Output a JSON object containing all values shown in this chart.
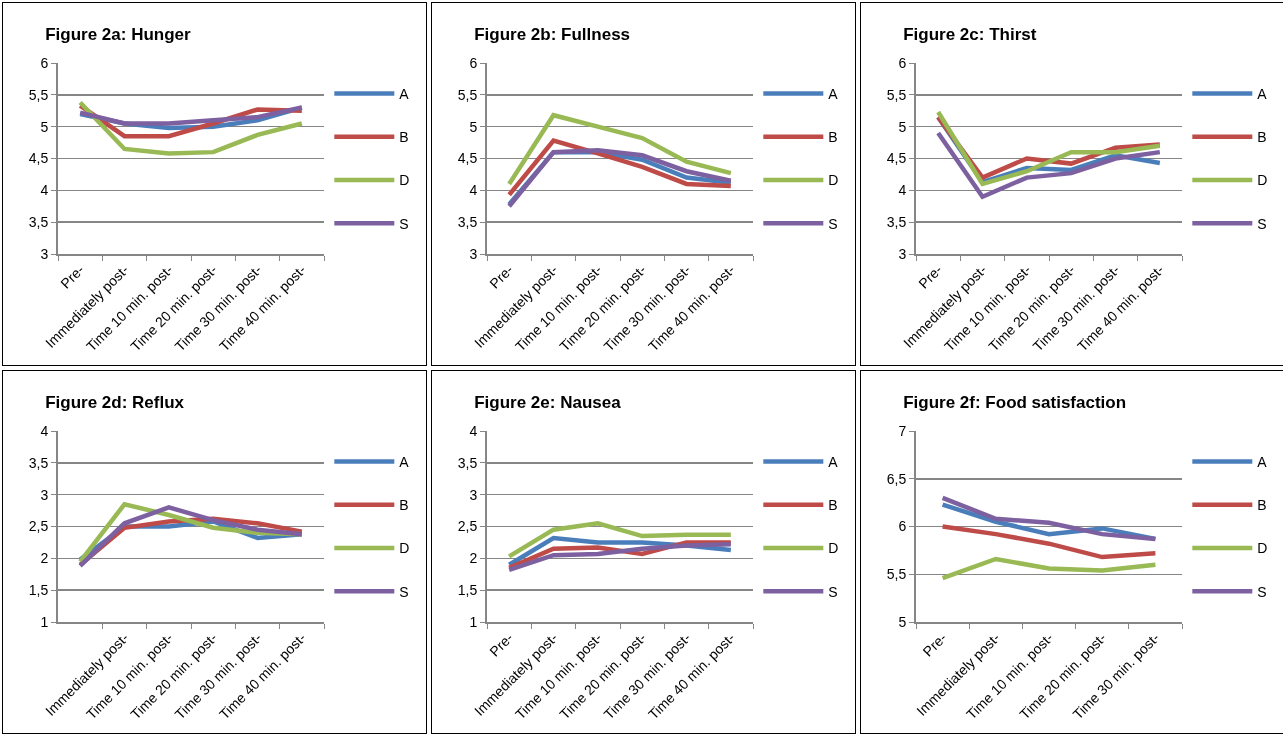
{
  "chart_data": [
    {
      "type": "line",
      "title": "Figure 2a: Hunger",
      "categories": [
        "Pre-",
        "Immediately post-",
        "Time 10 min. post-",
        "Time 20 min. post-",
        "Time 30 min. post-",
        "Time 40 min. post-"
      ],
      "ylim": [
        3,
        6
      ],
      "yticks": [
        3,
        {
          "value": 3.5,
          "label": "3,5"
        },
        4,
        {
          "value": 4.5,
          "label": "4,5"
        },
        5,
        {
          "value": 5.5,
          "label": "5,5"
        },
        6
      ],
      "grid": "y",
      "legend": "right",
      "series": [
        {
          "name": "A",
          "color": "#4a7ebb",
          "values": [
            5.2,
            5.05,
            4.98,
            5.0,
            5.1,
            5.3
          ]
        },
        {
          "name": "B",
          "color": "#be4b48",
          "values": [
            5.33,
            4.85,
            4.85,
            5.05,
            5.27,
            5.25
          ]
        },
        {
          "name": "D",
          "color": "#98b954",
          "values": [
            5.38,
            4.65,
            4.58,
            4.6,
            4.87,
            5.05
          ]
        },
        {
          "name": "S",
          "color": "#7d60a0",
          "values": [
            5.22,
            5.05,
            5.05,
            5.1,
            5.15,
            5.3
          ]
        }
      ]
    },
    {
      "type": "line",
      "title": "Figure 2b: Fullness",
      "categories": [
        "Pre-",
        "Immediately post-",
        "Time 10 min. post-",
        "Time 20 min. post-",
        "Time 30 min. post-",
        "Time 40 min. post-"
      ],
      "ylim": [
        3,
        6
      ],
      "yticks": [
        3,
        {
          "value": 3.5,
          "label": "3,5"
        },
        4,
        {
          "value": 4.5,
          "label": "4,5"
        },
        5,
        {
          "value": 5.5,
          "label": "5,5"
        },
        6
      ],
      "grid": "y",
      "legend": "right",
      "series": [
        {
          "name": "A",
          "color": "#4a7ebb",
          "values": [
            3.78,
            4.6,
            4.6,
            4.48,
            4.2,
            4.12
          ]
        },
        {
          "name": "B",
          "color": "#be4b48",
          "values": [
            3.93,
            4.78,
            4.58,
            4.37,
            4.1,
            4.07
          ]
        },
        {
          "name": "D",
          "color": "#98b954",
          "values": [
            4.1,
            5.18,
            5.0,
            4.82,
            4.45,
            4.27
          ]
        },
        {
          "name": "S",
          "color": "#7d60a0",
          "values": [
            3.75,
            4.6,
            4.63,
            4.55,
            4.3,
            4.15
          ]
        }
      ]
    },
    {
      "type": "line",
      "title": "Figure 2c: Thirst",
      "categories": [
        "Pre-",
        "Immediately post-",
        "Time 10 min. post-",
        "Time 20 min. post-",
        "Time 30 min. post-",
        "Time 40 min. post-"
      ],
      "ylim": [
        3,
        6
      ],
      "yticks": [
        3,
        {
          "value": 3.5,
          "label": "3,5"
        },
        4,
        {
          "value": 4.5,
          "label": "4,5"
        },
        5,
        {
          "value": 5.5,
          "label": "5,5"
        },
        6
      ],
      "grid": "y",
      "legend": "right",
      "series": [
        {
          "name": "A",
          "color": "#4a7ebb",
          "values": [
            5.15,
            4.13,
            4.35,
            4.32,
            4.55,
            4.43
          ]
        },
        {
          "name": "B",
          "color": "#be4b48",
          "values": [
            5.15,
            4.2,
            4.5,
            4.42,
            4.67,
            4.72
          ]
        },
        {
          "name": "D",
          "color": "#98b954",
          "values": [
            5.23,
            4.1,
            4.3,
            4.6,
            4.6,
            4.7
          ]
        },
        {
          "name": "S",
          "color": "#7d60a0",
          "values": [
            4.9,
            3.9,
            4.2,
            4.27,
            4.5,
            4.6
          ]
        }
      ]
    },
    {
      "type": "line",
      "title": "Figure 2d: Reflux",
      "categories": [
        null,
        "Immediately post-",
        "Time 10 min. post-",
        "Time 20 min. post-",
        "Time 30 min. post-",
        "Time 40 min. post-"
      ],
      "ylim": [
        1,
        4
      ],
      "yticks": [
        1,
        {
          "value": 1.5,
          "label": "1,5"
        },
        2,
        {
          "value": 2.5,
          "label": "2,5"
        },
        3,
        {
          "value": 3.5,
          "label": "3,5"
        },
        4
      ],
      "grid": "y",
      "legend": "right",
      "series": [
        {
          "name": "A",
          "color": "#4a7ebb",
          "values": [
            1.98,
            2.5,
            2.5,
            2.58,
            2.32,
            2.38
          ]
        },
        {
          "name": "B",
          "color": "#be4b48",
          "values": [
            1.9,
            2.48,
            2.58,
            2.62,
            2.55,
            2.42
          ]
        },
        {
          "name": "D",
          "color": "#98b954",
          "values": [
            1.95,
            2.85,
            2.68,
            2.48,
            2.4,
            2.38
          ]
        },
        {
          "name": "S",
          "color": "#7d60a0",
          "values": [
            1.88,
            2.55,
            2.8,
            2.6,
            2.45,
            2.38
          ]
        }
      ]
    },
    {
      "type": "line",
      "title": "Figure 2e: Nausea",
      "categories": [
        "Pre-",
        "Immediately post-",
        "Time 10 min. post-",
        "Time 20 min. post-",
        "Time 30 min. post-",
        "Time 40 min. post-"
      ],
      "ylim": [
        1,
        4
      ],
      "yticks": [
        1,
        {
          "value": 1.5,
          "label": "1,5"
        },
        2,
        {
          "value": 2.5,
          "label": "2,5"
        },
        3,
        {
          "value": 3.5,
          "label": "3,5"
        },
        4
      ],
      "grid": "y",
      "legend": "right",
      "series": [
        {
          "name": "A",
          "color": "#4a7ebb",
          "values": [
            1.9,
            2.32,
            2.25,
            2.25,
            2.2,
            2.13
          ]
        },
        {
          "name": "B",
          "color": "#be4b48",
          "values": [
            1.85,
            2.15,
            2.17,
            2.07,
            2.25,
            2.25
          ]
        },
        {
          "name": "D",
          "color": "#98b954",
          "values": [
            2.03,
            2.45,
            2.55,
            2.35,
            2.37,
            2.37
          ]
        },
        {
          "name": "S",
          "color": "#7d60a0",
          "values": [
            1.82,
            2.05,
            2.07,
            2.15,
            2.2,
            2.22
          ]
        }
      ]
    },
    {
      "type": "line",
      "title": "Figure 2f: Food satisfaction",
      "categories": [
        "Pre-",
        "Immediately post-",
        "Time 10 min. post-",
        "Time 20 min. post-",
        "Time 30 min. post-"
      ],
      "ylim": [
        5,
        7
      ],
      "yticks": [
        5,
        {
          "value": 5.5,
          "label": "5,5"
        },
        6,
        {
          "value": 6.5,
          "label": "6,5"
        },
        7
      ],
      "grid": "y",
      "legend": "right",
      "series": [
        {
          "name": "A",
          "color": "#4a7ebb",
          "values": [
            6.23,
            6.05,
            5.92,
            5.98,
            5.87
          ]
        },
        {
          "name": "B",
          "color": "#be4b48",
          "values": [
            6.0,
            5.92,
            5.82,
            5.68,
            5.72
          ]
        },
        {
          "name": "D",
          "color": "#98b954",
          "values": [
            5.46,
            5.66,
            5.56,
            5.54,
            5.6
          ]
        },
        {
          "name": "S",
          "color": "#7d60a0",
          "values": [
            6.3,
            6.08,
            6.04,
            5.92,
            5.87
          ]
        }
      ]
    }
  ]
}
